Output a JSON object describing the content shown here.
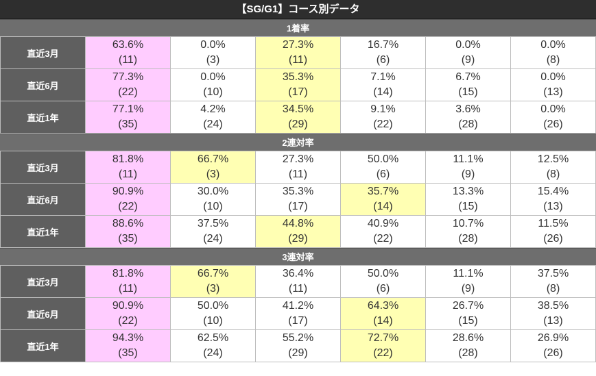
{
  "title": "【SG/G1】コース別データ",
  "sections": [
    {
      "title": "1着率",
      "rows": [
        {
          "label": "直近3月",
          "cells": [
            {
              "pct": "63.6%",
              "count": "(11)",
              "hl": "pink"
            },
            {
              "pct": "0.0%",
              "count": "(3)",
              "hl": ""
            },
            {
              "pct": "27.3%",
              "count": "(11)",
              "hl": "yellow"
            },
            {
              "pct": "16.7%",
              "count": "(6)",
              "hl": ""
            },
            {
              "pct": "0.0%",
              "count": "(9)",
              "hl": ""
            },
            {
              "pct": "0.0%",
              "count": "(8)",
              "hl": ""
            }
          ]
        },
        {
          "label": "直近6月",
          "cells": [
            {
              "pct": "77.3%",
              "count": "(22)",
              "hl": "pink"
            },
            {
              "pct": "0.0%",
              "count": "(10)",
              "hl": ""
            },
            {
              "pct": "35.3%",
              "count": "(17)",
              "hl": "yellow"
            },
            {
              "pct": "7.1%",
              "count": "(14)",
              "hl": ""
            },
            {
              "pct": "6.7%",
              "count": "(15)",
              "hl": ""
            },
            {
              "pct": "0.0%",
              "count": "(13)",
              "hl": ""
            }
          ]
        },
        {
          "label": "直近1年",
          "cells": [
            {
              "pct": "77.1%",
              "count": "(35)",
              "hl": "pink"
            },
            {
              "pct": "4.2%",
              "count": "(24)",
              "hl": ""
            },
            {
              "pct": "34.5%",
              "count": "(29)",
              "hl": "yellow"
            },
            {
              "pct": "9.1%",
              "count": "(22)",
              "hl": ""
            },
            {
              "pct": "3.6%",
              "count": "(28)",
              "hl": ""
            },
            {
              "pct": "0.0%",
              "count": "(26)",
              "hl": ""
            }
          ]
        }
      ]
    },
    {
      "title": "2連対率",
      "rows": [
        {
          "label": "直近3月",
          "cells": [
            {
              "pct": "81.8%",
              "count": "(11)",
              "hl": "pink"
            },
            {
              "pct": "66.7%",
              "count": "(3)",
              "hl": "yellow"
            },
            {
              "pct": "27.3%",
              "count": "(11)",
              "hl": ""
            },
            {
              "pct": "50.0%",
              "count": "(6)",
              "hl": ""
            },
            {
              "pct": "11.1%",
              "count": "(9)",
              "hl": ""
            },
            {
              "pct": "12.5%",
              "count": "(8)",
              "hl": ""
            }
          ]
        },
        {
          "label": "直近6月",
          "cells": [
            {
              "pct": "90.9%",
              "count": "(22)",
              "hl": "pink"
            },
            {
              "pct": "30.0%",
              "count": "(10)",
              "hl": ""
            },
            {
              "pct": "35.3%",
              "count": "(17)",
              "hl": ""
            },
            {
              "pct": "35.7%",
              "count": "(14)",
              "hl": "yellow"
            },
            {
              "pct": "13.3%",
              "count": "(15)",
              "hl": ""
            },
            {
              "pct": "15.4%",
              "count": "(13)",
              "hl": ""
            }
          ]
        },
        {
          "label": "直近1年",
          "cells": [
            {
              "pct": "88.6%",
              "count": "(35)",
              "hl": "pink"
            },
            {
              "pct": "37.5%",
              "count": "(24)",
              "hl": ""
            },
            {
              "pct": "44.8%",
              "count": "(29)",
              "hl": "yellow"
            },
            {
              "pct": "40.9%",
              "count": "(22)",
              "hl": ""
            },
            {
              "pct": "10.7%",
              "count": "(28)",
              "hl": ""
            },
            {
              "pct": "11.5%",
              "count": "(26)",
              "hl": ""
            }
          ]
        }
      ]
    },
    {
      "title": "3連対率",
      "rows": [
        {
          "label": "直近3月",
          "cells": [
            {
              "pct": "81.8%",
              "count": "(11)",
              "hl": "pink"
            },
            {
              "pct": "66.7%",
              "count": "(3)",
              "hl": "yellow"
            },
            {
              "pct": "36.4%",
              "count": "(11)",
              "hl": ""
            },
            {
              "pct": "50.0%",
              "count": "(6)",
              "hl": ""
            },
            {
              "pct": "11.1%",
              "count": "(9)",
              "hl": ""
            },
            {
              "pct": "37.5%",
              "count": "(8)",
              "hl": ""
            }
          ]
        },
        {
          "label": "直近6月",
          "cells": [
            {
              "pct": "90.9%",
              "count": "(22)",
              "hl": "pink"
            },
            {
              "pct": "50.0%",
              "count": "(10)",
              "hl": ""
            },
            {
              "pct": "41.2%",
              "count": "(17)",
              "hl": ""
            },
            {
              "pct": "64.3%",
              "count": "(14)",
              "hl": "yellow"
            },
            {
              "pct": "26.7%",
              "count": "(15)",
              "hl": ""
            },
            {
              "pct": "38.5%",
              "count": "(13)",
              "hl": ""
            }
          ]
        },
        {
          "label": "直近1年",
          "cells": [
            {
              "pct": "94.3%",
              "count": "(35)",
              "hl": "pink"
            },
            {
              "pct": "62.5%",
              "count": "(24)",
              "hl": ""
            },
            {
              "pct": "55.2%",
              "count": "(29)",
              "hl": ""
            },
            {
              "pct": "72.7%",
              "count": "(22)",
              "hl": "yellow"
            },
            {
              "pct": "28.6%",
              "count": "(28)",
              "hl": ""
            },
            {
              "pct": "26.9%",
              "count": "(26)",
              "hl": ""
            }
          ]
        }
      ]
    }
  ],
  "colors": {
    "top_highlight": "#ffccff",
    "second_highlight": "#ffffb3",
    "title_bar": "#2e2e2e",
    "section_header": "#6e6e6e",
    "row_label": "#5f5f5f"
  }
}
